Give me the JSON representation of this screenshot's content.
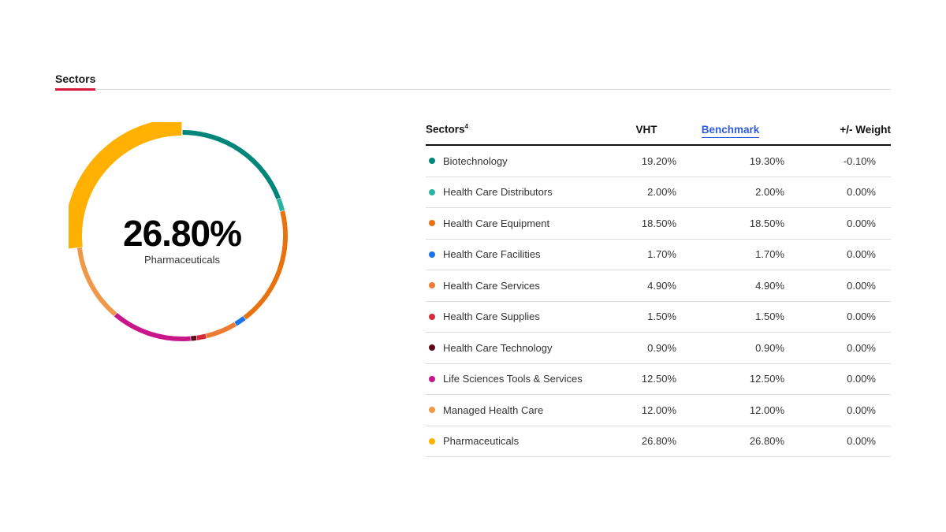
{
  "tab": {
    "label": "Sectors"
  },
  "center": {
    "value": "26.80%",
    "label": "Pharmaceuticals"
  },
  "table": {
    "headers": {
      "name": "Sectors",
      "name_sup": "4",
      "vht": "VHT",
      "benchmark": "Benchmark",
      "weight": "+/- Weight"
    },
    "rows": [
      {
        "name": "Biotechnology",
        "vht": "19.20%",
        "benchmark": "19.30%",
        "weight": "-0.10%",
        "color": "#00857a"
      },
      {
        "name": "Health Care Distributors",
        "vht": "2.00%",
        "benchmark": "2.00%",
        "weight": "0.00%",
        "color": "#2ab3a0"
      },
      {
        "name": "Health Care Equipment",
        "vht": "18.50%",
        "benchmark": "18.50%",
        "weight": "0.00%",
        "color": "#e8730e"
      },
      {
        "name": "Health Care Facilities",
        "vht": "1.70%",
        "benchmark": "1.70%",
        "weight": "0.00%",
        "color": "#1a73e8"
      },
      {
        "name": "Health Care Services",
        "vht": "4.90%",
        "benchmark": "4.90%",
        "weight": "0.00%",
        "color": "#ec7c33"
      },
      {
        "name": "Health Care Supplies",
        "vht": "1.50%",
        "benchmark": "1.50%",
        "weight": "0.00%",
        "color": "#d42a3c"
      },
      {
        "name": "Health Care Technology",
        "vht": "0.90%",
        "benchmark": "0.90%",
        "weight": "0.00%",
        "color": "#5c0a1c"
      },
      {
        "name": "Life Sciences Tools & Services",
        "vht": "12.50%",
        "benchmark": "12.50%",
        "weight": "0.00%",
        "color": "#c8168a"
      },
      {
        "name": "Managed Health Care",
        "vht": "12.00%",
        "benchmark": "12.00%",
        "weight": "0.00%",
        "color": "#f0984a"
      },
      {
        "name": "Pharmaceuticals",
        "vht": "26.80%",
        "benchmark": "26.80%",
        "weight": "0.00%",
        "color": "#ffb000"
      }
    ]
  },
  "chart_data": {
    "type": "pie",
    "variant": "donut",
    "highlighted": "Pharmaceuticals",
    "categories": [
      "Biotechnology",
      "Health Care Distributors",
      "Health Care Equipment",
      "Health Care Facilities",
      "Health Care Services",
      "Health Care Supplies",
      "Health Care Technology",
      "Life Sciences Tools & Services",
      "Managed Health Care",
      "Pharmaceuticals"
    ],
    "values": [
      19.2,
      2.0,
      18.5,
      1.7,
      4.9,
      1.5,
      0.9,
      12.5,
      12.0,
      26.8
    ],
    "colors": [
      "#00857a",
      "#2ab3a0",
      "#e8730e",
      "#1a73e8",
      "#ec7c33",
      "#d42a3c",
      "#5c0a1c",
      "#c8168a",
      "#f0984a",
      "#ffb000"
    ]
  }
}
